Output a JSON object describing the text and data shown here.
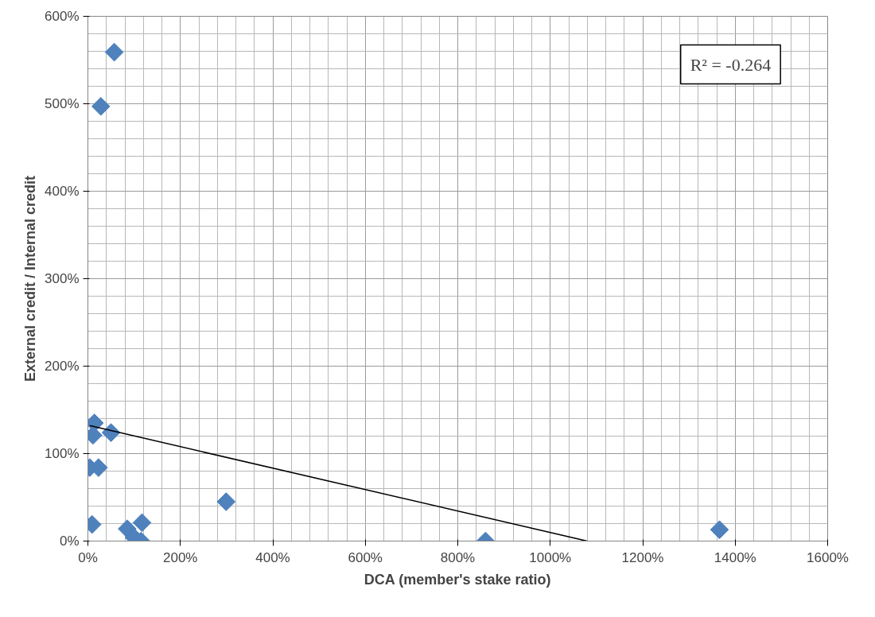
{
  "chart_data": {
    "type": "scatter",
    "xlabel": "DCA (member's stake ratio)",
    "ylabel": "External credit / Internal credit",
    "annotations": [
      "R² = -0.264"
    ],
    "series": [
      {
        "color": "#4f81bd",
        "marker": "diamond",
        "x": [
          14,
          11,
          50,
          4,
          23,
          9,
          85,
          117,
          115,
          100,
          299,
          57,
          28,
          860,
          1366
        ],
        "values": [
          135,
          121,
          124,
          84,
          84,
          19,
          14,
          21,
          0,
          4,
          45,
          559,
          497,
          0,
          13
        ]
      },
      {
        "type": "line",
        "color": "#000000",
        "marker": "none",
        "x": [
          4,
          1080
        ],
        "values": [
          132,
          0
        ]
      }
    ],
    "xlim": [
      0,
      1600
    ],
    "ylim": [
      0,
      600
    ],
    "xticks": [
      {
        "value": 0,
        "label": "0%"
      },
      {
        "value": 200,
        "label": "200%"
      },
      {
        "value": 400,
        "label": "400%"
      },
      {
        "value": 600,
        "label": "600%"
      },
      {
        "value": 800,
        "label": "800%"
      },
      {
        "value": 1000,
        "label": "1000%"
      },
      {
        "value": 1200,
        "label": "1200%"
      },
      {
        "value": 1400,
        "label": "1400%"
      },
      {
        "value": 1600,
        "label": "1600%"
      }
    ],
    "yticks": [
      {
        "value": 0,
        "label": "0%"
      },
      {
        "value": 100,
        "label": "100%"
      },
      {
        "value": 200,
        "label": "200%"
      },
      {
        "value": 300,
        "label": "300%"
      },
      {
        "value": 400,
        "label": "400%"
      },
      {
        "value": 500,
        "label": "500%"
      },
      {
        "value": 600,
        "label": "600%"
      }
    ],
    "grid": true
  }
}
